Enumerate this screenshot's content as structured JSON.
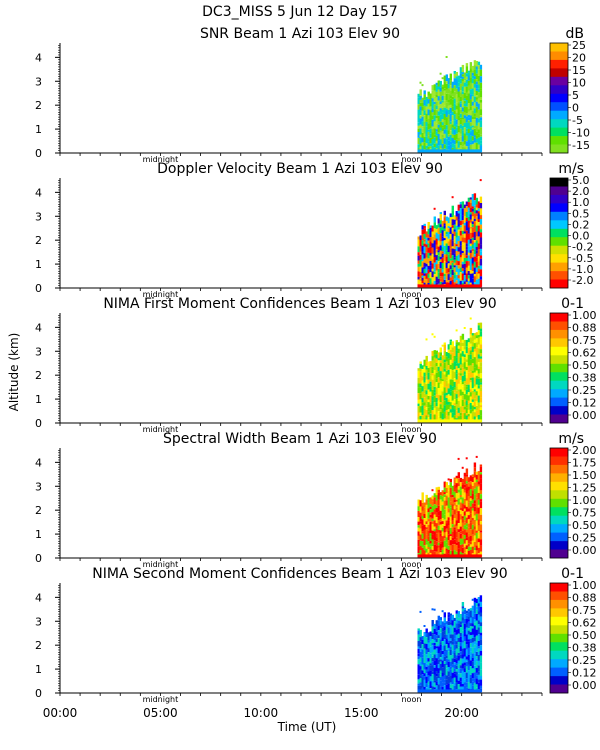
{
  "header": {
    "title": "DC3_MISS   5 Jun 12 Day 157"
  },
  "shared": {
    "ylabel": "Altitude (km)",
    "xlabel": "Time (UT)",
    "x_ticks": [
      0,
      5,
      10,
      15,
      20
    ],
    "x_tick_labels": [
      "00:00",
      "05:00",
      "10:00",
      "15:00",
      "20:00"
    ],
    "x_range": [
      0,
      24
    ],
    "y_range": [
      0,
      4.6
    ],
    "y_ticks": [
      0,
      1,
      2,
      3,
      4
    ],
    "midnight_label": "midnight",
    "noon_label": "noon",
    "midnight_hour": 5,
    "noon_hour": 17.5
  },
  "chart_data": [
    {
      "type": "heatmap",
      "title": "SNR Beam 1 Azi 103 Elev 90",
      "unit": "dB",
      "data_time_range": [
        17.8,
        21.0
      ],
      "data_top_km": [
        2.4,
        3.9
      ],
      "colorbar_labels": [
        "25",
        "20",
        "15",
        "10",
        "5",
        "0",
        "-5",
        "-10",
        "-15"
      ],
      "colorbar_colors": [
        "#ffc000",
        "#ff8c00",
        "#ff2000",
        "#c00000",
        "#6a00a0",
        "#3000c8",
        "#0000ff",
        "#0050ff",
        "#00aaff",
        "#00d8c0",
        "#00e060",
        "#60e000",
        "#80e020"
      ],
      "field_colors": [
        "#80e020",
        "#60e000",
        "#a0e830",
        "#00d8c0",
        "#00aaff"
      ]
    },
    {
      "type": "heatmap",
      "title": "Doppler Velocity Beam 1 Azi 103 Elev 90",
      "unit": "m/s",
      "data_time_range": [
        17.8,
        21.0
      ],
      "data_top_km": [
        2.4,
        3.9
      ],
      "colorbar_labels": [
        "5.0",
        "2.0",
        "1.0",
        "0.5",
        "0.2",
        "0.0",
        "-0.2",
        "-0.5",
        "-1.0",
        "-2.0"
      ],
      "colorbar_colors": [
        "#000000",
        "#500090",
        "#3000c8",
        "#0000ff",
        "#0080ff",
        "#00c8ff",
        "#00e060",
        "#60e000",
        "#d0e000",
        "#ffe000",
        "#ffa000",
        "#ff5000",
        "#ff0000"
      ],
      "field_colors": [
        "#ff0000",
        "#0000ff",
        "#00e060",
        "#ffa000",
        "#3000c8",
        "#ffe000",
        "#00c8ff",
        "#ff5000"
      ]
    },
    {
      "type": "heatmap",
      "title": "NIMA First Moment Confidences Beam 1 Azi 103 Elev 90",
      "unit": "0-1",
      "data_time_range": [
        17.8,
        21.0
      ],
      "data_top_km": [
        2.5,
        4.0
      ],
      "colorbar_labels": [
        "1.00",
        "0.88",
        "0.75",
        "0.62",
        "0.50",
        "0.38",
        "0.25",
        "0.12",
        "0.00"
      ],
      "colorbar_colors": [
        "#ff0000",
        "#ff5000",
        "#ff9000",
        "#ffc800",
        "#ffff00",
        "#c8e000",
        "#60e000",
        "#00e060",
        "#00d8c0",
        "#00aaff",
        "#0060ff",
        "#0000c8",
        "#500090"
      ],
      "field_colors": [
        "#ffff00",
        "#60e000",
        "#00e060",
        "#ffc800",
        "#c8e000"
      ]
    },
    {
      "type": "heatmap",
      "title": "Spectral Width Beam 1 Azi 103 Elev 90",
      "unit": "m/s",
      "data_time_range": [
        17.8,
        21.0
      ],
      "data_top_km": [
        2.4,
        3.9
      ],
      "colorbar_labels": [
        "2.00",
        "1.75",
        "1.50",
        "1.25",
        "1.00",
        "0.75",
        "0.50",
        "0.25",
        "0.00"
      ],
      "colorbar_colors": [
        "#ff0000",
        "#ff3000",
        "#ff7000",
        "#ffb000",
        "#ffe000",
        "#c0e000",
        "#60e000",
        "#00e060",
        "#00d8c0",
        "#00aaff",
        "#0060ff",
        "#0000c8",
        "#500090"
      ],
      "field_colors": [
        "#ff0000",
        "#ff3000",
        "#ff7000",
        "#ffe000",
        "#60e000"
      ]
    },
    {
      "type": "heatmap",
      "title": "NIMA Second Moment Confidences Beam 1 Azi 103 Elev 90",
      "unit": "0-1",
      "data_time_range": [
        17.8,
        21.0
      ],
      "data_top_km": [
        2.5,
        4.0
      ],
      "colorbar_labels": [
        "1.00",
        "0.88",
        "0.75",
        "0.62",
        "0.50",
        "0.38",
        "0.25",
        "0.12",
        "0.00"
      ],
      "colorbar_colors": [
        "#ff0000",
        "#ff5000",
        "#ff9000",
        "#ffc800",
        "#ffff00",
        "#c8e000",
        "#60e000",
        "#00e060",
        "#00d8c0",
        "#00aaff",
        "#0060ff",
        "#0000c8",
        "#500090"
      ],
      "field_colors": [
        "#0060ff",
        "#0000ff",
        "#00aaff",
        "#0040e0",
        "#00d8c0"
      ]
    }
  ]
}
